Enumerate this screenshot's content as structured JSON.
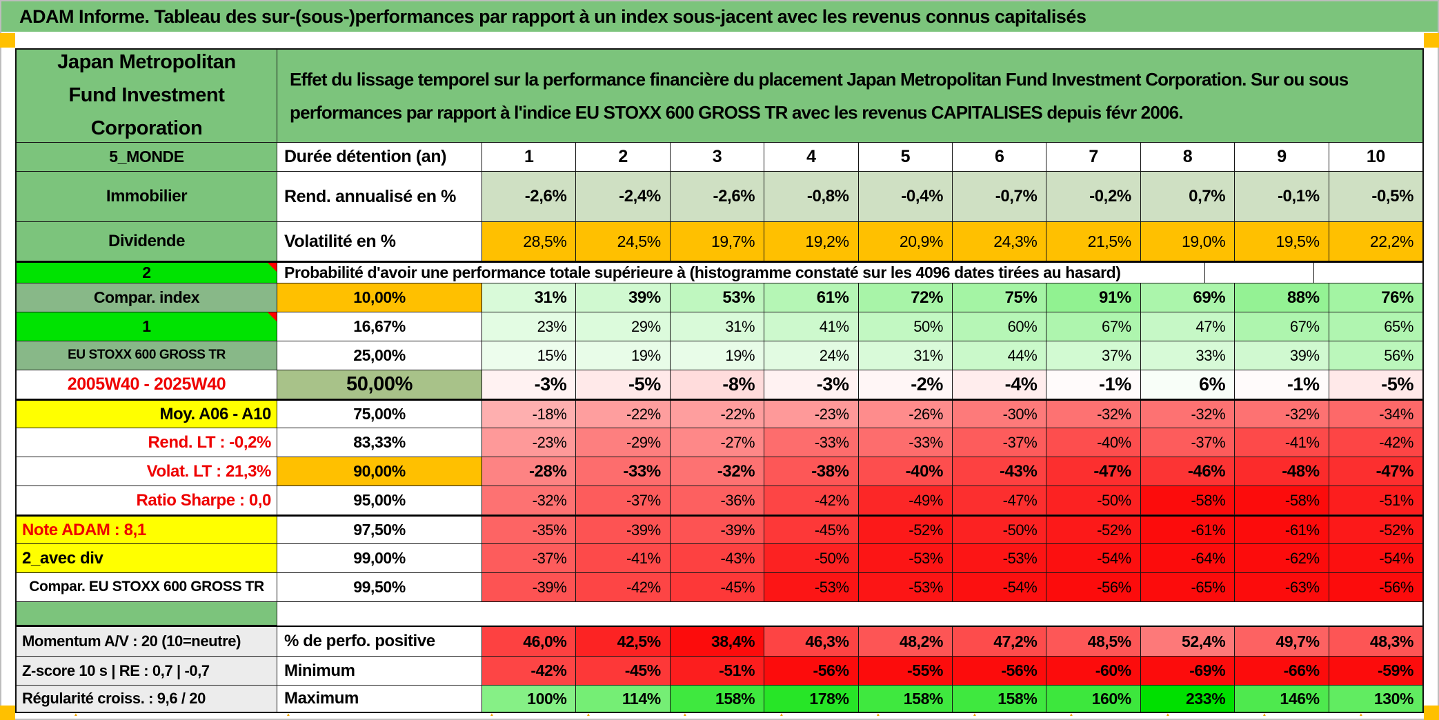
{
  "title": "ADAM Informe. Tableau des sur-(sous-)performances par rapport à un index sous-jacent avec les revenus connus capitalisés",
  "header": {
    "fund": "Japan Metropolitan Fund Investment Corporation",
    "description": "Effet du lissage temporel sur la performance financière du placement Japan Metropolitan Fund Investment Corporation. Sur ou sous performances par rapport à l'indice EU STOXX 600 GROSS TR avec les revenus CAPITALISES depuis févr 2006."
  },
  "colors": {
    "green": "#7cc47c",
    "mutedGreen": "#88b888",
    "brightGreen": "#00e301",
    "orange": "#ffc000",
    "yellow": "#ffff00",
    "sage": "#a8c289",
    "gray": "#ececec",
    "white": "#ffffff",
    "redText": "#ee0000",
    "rendRowBg": "#cfe0c3",
    "negBase": "#fc0c0c",
    "posBase": "#00e000",
    "accent": "#ffc000"
  },
  "table": {
    "duration_row": {
      "label": "5_MONDE",
      "metric": "Durée détention (an)",
      "values": [
        "1",
        "2",
        "3",
        "4",
        "5",
        "6",
        "7",
        "8",
        "9",
        "10"
      ]
    },
    "annualized_row": {
      "label": "Immobilier",
      "metric": "Rend. annualisé en %",
      "values": [
        "-2,6%",
        "-2,4%",
        "-2,6%",
        "-0,8%",
        "-0,4%",
        "-0,7%",
        "-0,2%",
        "0,7%",
        "-0,1%",
        "-0,5%"
      ]
    },
    "volatility_row": {
      "label": "Dividende",
      "metric": "Volatilité en %",
      "values": [
        "28,5%",
        "24,5%",
        "19,7%",
        "19,2%",
        "20,9%",
        "24,3%",
        "21,5%",
        "19,0%",
        "19,5%",
        "22,2%"
      ]
    },
    "probability_header": {
      "label": "2",
      "caption": "Probabilité d'avoir une performance totale supérieure à (histogramme constaté sur les 4096 dates tirées au hasard)"
    },
    "probability_rows": [
      {
        "label": "Compar. index",
        "lbg": "mutedGreen",
        "lalign": "center",
        "threshold": "10,00%",
        "tbg": "orange",
        "weight": "bold",
        "values": [
          "31%",
          "39%",
          "53%",
          "61%",
          "72%",
          "75%",
          "91%",
          "69%",
          "88%",
          "76%"
        ]
      },
      {
        "label": "1",
        "lbg": "brightGreen",
        "lalign": "center",
        "corner": true,
        "threshold": "16,67%",
        "tbg": "white",
        "weight": "normal",
        "values": [
          "23%",
          "29%",
          "31%",
          "41%",
          "50%",
          "60%",
          "67%",
          "47%",
          "67%",
          "65%"
        ]
      },
      {
        "label": "EU STOXX 600 GROSS TR",
        "lbg": "mutedGreen",
        "lalign": "center",
        "lsize": 19,
        "threshold": "25,00%",
        "tbg": "white",
        "weight": "normal",
        "values": [
          "15%",
          "19%",
          "19%",
          "24%",
          "31%",
          "44%",
          "37%",
          "33%",
          "39%",
          "56%"
        ]
      },
      {
        "label": "2005W40 - 2025W40",
        "lbg": "white",
        "lcolor": "redText",
        "lalign": "center",
        "lsize": 25,
        "threshold": "50,00%",
        "tbg": "sage",
        "tsize": 29,
        "weight": "big",
        "values": [
          "-3%",
          "-5%",
          "-8%",
          "-3%",
          "-2%",
          "-4%",
          "-1%",
          "6%",
          "-1%",
          "-5%"
        ]
      },
      {
        "label": "Moy. A06 - A10",
        "lbg": "yellow",
        "lalign": "right",
        "lsize": 24,
        "threshold": "75,00%",
        "tbg": "white",
        "weight": "normal",
        "values": [
          "-18%",
          "-22%",
          "-22%",
          "-23%",
          "-26%",
          "-30%",
          "-32%",
          "-32%",
          "-32%",
          "-34%"
        ]
      },
      {
        "label": "Rend. LT :   -0,2%",
        "lbg": "white",
        "lcolor": "redText",
        "lalign": "right",
        "lsize": 24,
        "threshold": "83,33%",
        "tbg": "white",
        "weight": "normal",
        "values": [
          "-23%",
          "-29%",
          "-27%",
          "-33%",
          "-33%",
          "-37%",
          "-40%",
          "-37%",
          "-41%",
          "-42%"
        ]
      },
      {
        "label": "Volat. LT :   21,3%",
        "lbg": "white",
        "lcolor": "redText",
        "lalign": "right",
        "lsize": 24,
        "threshold": "90,00%",
        "tbg": "orange",
        "weight": "bold",
        "values": [
          "-28%",
          "-33%",
          "-32%",
          "-38%",
          "-40%",
          "-43%",
          "-47%",
          "-46%",
          "-48%",
          "-47%"
        ]
      },
      {
        "label": "Ratio Sharpe :   0,0",
        "lbg": "white",
        "lcolor": "redText",
        "lalign": "right",
        "lsize": 24,
        "threshold": "95,00%",
        "tbg": "white",
        "weight": "normal",
        "values": [
          "-32%",
          "-37%",
          "-36%",
          "-42%",
          "-49%",
          "-47%",
          "-50%",
          "-58%",
          "-58%",
          "-51%"
        ]
      },
      {
        "label": "Note ADAM : 8,1",
        "lbg": "yellow",
        "lcolor": "redText",
        "lalign": "left",
        "lsize": 24,
        "threshold": "97,50%",
        "tbg": "white",
        "weight": "normal",
        "values": [
          "-35%",
          "-39%",
          "-39%",
          "-45%",
          "-52%",
          "-50%",
          "-52%",
          "-61%",
          "-61%",
          "-52%"
        ]
      },
      {
        "label": "2_avec div",
        "lbg": "yellow",
        "lalign": "left",
        "lsize": 24,
        "threshold": "99,00%",
        "tbg": "white",
        "weight": "normal",
        "values": [
          "-37%",
          "-41%",
          "-43%",
          "-50%",
          "-53%",
          "-53%",
          "-54%",
          "-64%",
          "-62%",
          "-54%"
        ]
      },
      {
        "label": "Compar. EU STOXX 600 GROSS TR",
        "lbg": "white",
        "lalign": "center",
        "lsize": 21,
        "threshold": "99,50%",
        "tbg": "white",
        "weight": "normal",
        "values": [
          "-39%",
          "-42%",
          "-45%",
          "-53%",
          "-53%",
          "-54%",
          "-56%",
          "-65%",
          "-63%",
          "-56%"
        ]
      }
    ],
    "bottom_rows": [
      {
        "label": "Momentum A/V : 20 (10=neutre)",
        "metric": "% de perfo. positive",
        "scale": "perfo",
        "values": [
          "46,0%",
          "42,5%",
          "38,4%",
          "46,3%",
          "48,2%",
          "47,2%",
          "48,5%",
          "52,4%",
          "49,7%",
          "48,3%"
        ]
      },
      {
        "label": "Z-score 10 s | RE : 0,7 | -0,7",
        "metric": "Minimum",
        "scale": "global",
        "values": [
          "-42%",
          "-45%",
          "-51%",
          "-56%",
          "-55%",
          "-56%",
          "-60%",
          "-69%",
          "-66%",
          "-59%"
        ]
      },
      {
        "label": "Régularité croiss. : 9,6 / 20",
        "metric": "Maximum",
        "scale": "global",
        "values": [
          "100%",
          "114%",
          "158%",
          "178%",
          "158%",
          "158%",
          "160%",
          "233%",
          "146%",
          "130%"
        ]
      }
    ]
  }
}
